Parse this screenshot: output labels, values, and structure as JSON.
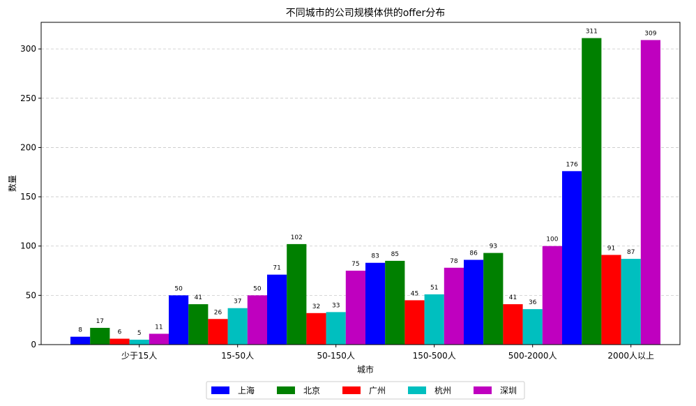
{
  "chart_data": {
    "type": "bar",
    "title": "不同城市的公司规模体供的offer分布",
    "xlabel": "城市",
    "ylabel": "数量",
    "categories": [
      "少于15人",
      "15-50人",
      "50-150人",
      "150-500人",
      "500-2000人",
      "2000人以上"
    ],
    "series": [
      {
        "name": "上海",
        "color": "#0000ff",
        "values": [
          8,
          50,
          71,
          83,
          86,
          176
        ]
      },
      {
        "name": "北京",
        "color": "#008000",
        "values": [
          17,
          41,
          102,
          85,
          93,
          311
        ]
      },
      {
        "name": "广州",
        "color": "#ff0000",
        "values": [
          6,
          26,
          32,
          45,
          41,
          91
        ]
      },
      {
        "name": "杭州",
        "color": "#00bfbf",
        "values": [
          5,
          37,
          33,
          51,
          36,
          87
        ]
      },
      {
        "name": "深圳",
        "color": "#bf00bf",
        "values": [
          11,
          50,
          75,
          78,
          100,
          309
        ]
      }
    ],
    "ylim": [
      0,
      327
    ],
    "yticks": [
      0,
      50,
      100,
      150,
      200,
      250,
      300
    ],
    "grid": "y-dashed",
    "legend": "bottom-center"
  }
}
